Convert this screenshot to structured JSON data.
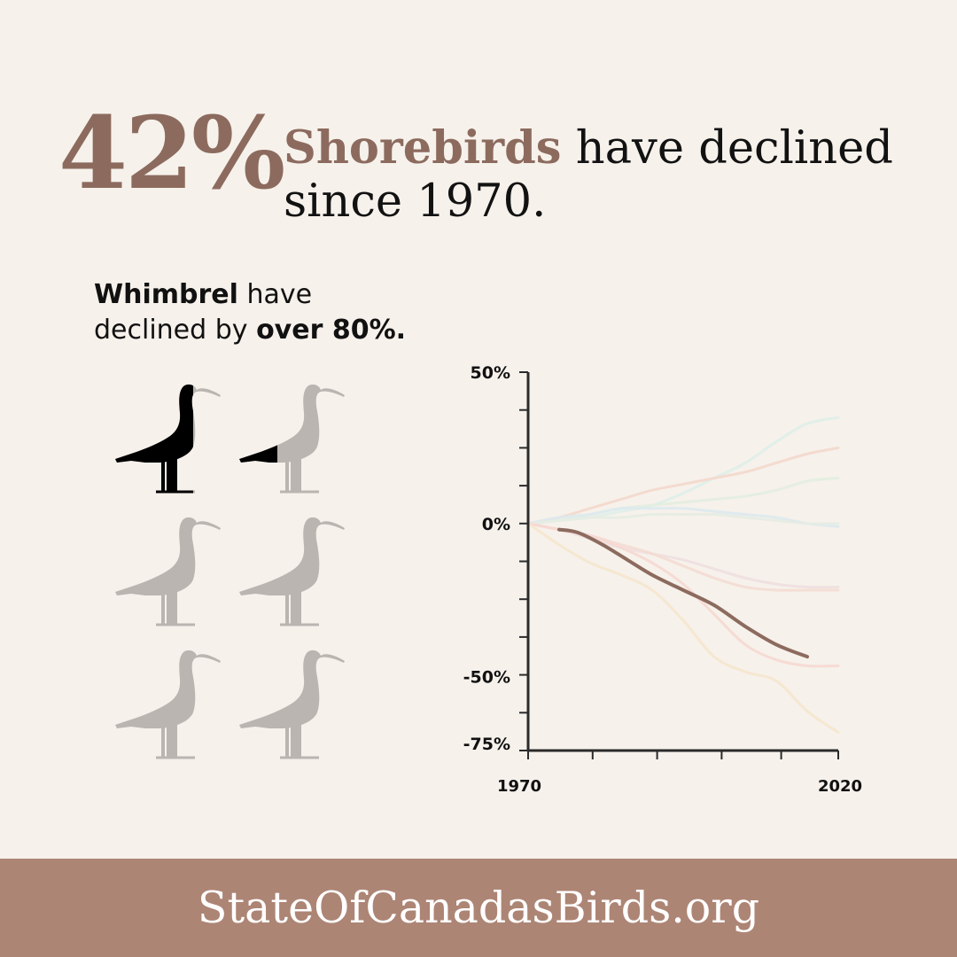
{
  "headline": {
    "percent": "42%",
    "group": "Shorebirds",
    "rest_line1": "have declined",
    "rest_line2": "since 1970."
  },
  "subhead": {
    "species": "Whimbrel",
    "text1": "have",
    "text2": "declined by",
    "amount": "over 80%."
  },
  "icons": {
    "name": "whimbrel-icon",
    "total": 6,
    "filled": 1.5,
    "colors": {
      "filled": "#000000",
      "empty": "#bab5b0"
    }
  },
  "colors": {
    "background": "#f6f1eb",
    "accent": "#8c6b5e",
    "footer_band": "#ad8575",
    "footer_text": "#ffffff"
  },
  "chart_data": {
    "type": "line",
    "title": "",
    "xlabel": "",
    "ylabel": "",
    "xlim": [
      1970,
      2020
    ],
    "ylim": [
      -75,
      50
    ],
    "x_tick_labels": [
      "1970",
      "2020"
    ],
    "y_tick_labels": [
      "50%",
      "0%",
      "-50%",
      "-75%"
    ],
    "grid": false,
    "series": [
      {
        "color": "#8c6b5e",
        "highlight": true,
        "x": [
          1975,
          1978,
          1982,
          1986,
          1990,
          1995,
          2000,
          2005,
          2010,
          2015
        ],
        "y": [
          -2,
          -3,
          -7,
          -12,
          -17,
          -22,
          -27,
          -34,
          -40,
          -44
        ]
      },
      {
        "color": "#dfeee9",
        "x": [
          1970,
          1975,
          1980,
          1985,
          1990,
          1995,
          2000,
          2005,
          2010,
          2015,
          2020
        ],
        "y": [
          0,
          1,
          2,
          4,
          6,
          10,
          15,
          20,
          27,
          33,
          35
        ]
      },
      {
        "color": "#f4d8cc",
        "x": [
          1970,
          1975,
          1980,
          1985,
          1990,
          1995,
          2000,
          2005,
          2010,
          2015,
          2020
        ],
        "y": [
          0,
          2,
          5,
          8,
          11,
          13,
          15,
          17,
          20,
          23,
          25
        ]
      },
      {
        "color": "#e3ede0",
        "x": [
          1970,
          1975,
          1980,
          1985,
          1990,
          1995,
          2000,
          2005,
          2010,
          2015,
          2020
        ],
        "y": [
          0,
          1,
          3,
          5,
          6,
          7,
          8,
          9,
          11,
          14,
          15
        ]
      },
      {
        "color": "#dde9ee",
        "x": [
          1970,
          1975,
          1980,
          1985,
          1990,
          1995,
          2000,
          2005,
          2010,
          2015,
          2020
        ],
        "y": [
          0,
          2,
          3,
          5,
          5,
          5,
          4,
          3,
          2,
          0,
          -1
        ]
      },
      {
        "color": "#e6ece3",
        "x": [
          1970,
          1975,
          1980,
          1985,
          1990,
          1995,
          2000,
          2005,
          2010,
          2015,
          2020
        ],
        "y": [
          0,
          1,
          2,
          2,
          3,
          3,
          3,
          2,
          1,
          0,
          0
        ]
      },
      {
        "color": "#efdfe0",
        "x": [
          1970,
          1975,
          1980,
          1985,
          1990,
          1995,
          2000,
          2005,
          2010,
          2015,
          2020
        ],
        "y": [
          0,
          -2,
          -5,
          -8,
          -10,
          -12,
          -15,
          -18,
          -20,
          -21,
          -21
        ]
      },
      {
        "color": "#f4dcd3",
        "x": [
          1970,
          1975,
          1980,
          1985,
          1990,
          1995,
          2000,
          2005,
          2010,
          2015,
          2020
        ],
        "y": [
          0,
          -2,
          -4,
          -7,
          -10,
          -14,
          -18,
          -21,
          -22,
          -22,
          -22
        ]
      },
      {
        "color": "#f6d8d2",
        "x": [
          1970,
          1975,
          1980,
          1985,
          1990,
          1995,
          2000,
          2005,
          2010,
          2015,
          2020
        ],
        "y": [
          0,
          -2,
          -4,
          -8,
          -13,
          -20,
          -30,
          -40,
          -45,
          -47,
          -47
        ]
      },
      {
        "color": "#f6e6cd",
        "x": [
          1970,
          1975,
          1980,
          1985,
          1990,
          1995,
          2000,
          2005,
          2010,
          2015,
          2020
        ],
        "y": [
          0,
          -7,
          -13,
          -17,
          -22,
          -32,
          -44,
          -49,
          -52,
          -62,
          -69
        ]
      }
    ]
  },
  "footer": {
    "url": "StateOfCanadasBirds.org"
  }
}
